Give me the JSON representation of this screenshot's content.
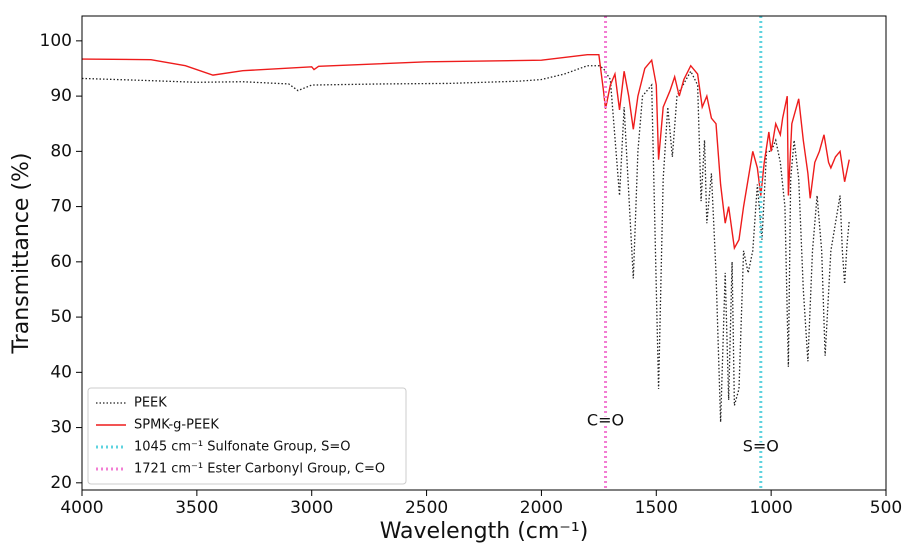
{
  "chart_data": {
    "type": "line",
    "x_label": "Wavelength (cm⁻¹)",
    "y_label": "Transmittance (%)",
    "xlim": [
      4000,
      500
    ],
    "ylim": [
      18.7,
      104.5
    ],
    "xticks": [
      4000,
      3500,
      3000,
      2500,
      2000,
      1500,
      1000,
      500
    ],
    "yticks": [
      20,
      30,
      40,
      50,
      60,
      70,
      80,
      90,
      100
    ],
    "grid": false,
    "legend_position": "lower-left",
    "series": [
      {
        "name": "PEEK",
        "color": "#222222",
        "style": "dotted",
        "x": [
          4000,
          3700,
          3500,
          3300,
          3100,
          3060,
          3000,
          2700,
          2400,
          2100,
          2000,
          1900,
          1800,
          1750,
          1730,
          1700,
          1660,
          1640,
          1600,
          1580,
          1560,
          1520,
          1490,
          1470,
          1450,
          1430,
          1410,
          1350,
          1320,
          1305,
          1290,
          1280,
          1260,
          1240,
          1220,
          1200,
          1185,
          1170,
          1160,
          1140,
          1120,
          1100,
          1080,
          1060,
          1040,
          1020,
          1000,
          980,
          960,
          940,
          925,
          915,
          900,
          880,
          860,
          840,
          820,
          800,
          780,
          765,
          740,
          720,
          700,
          690,
          680,
          670,
          660
        ],
        "values": [
          93.2,
          92.8,
          92.5,
          92.6,
          92.2,
          91,
          92,
          92.2,
          92.3,
          92.7,
          93,
          94,
          95.5,
          95.5,
          95,
          93,
          72,
          88,
          57,
          80,
          90,
          92,
          37,
          75,
          88,
          79,
          90,
          94.5,
          92,
          71,
          82,
          67,
          76,
          58,
          31,
          58,
          35,
          60,
          34,
          37,
          62,
          58,
          62,
          74,
          64,
          80,
          80,
          82,
          78,
          70,
          41,
          75,
          82,
          75,
          55,
          42,
          62,
          72,
          62,
          43,
          62,
          67,
          72,
          62,
          56,
          63,
          67.5
        ]
      },
      {
        "name": "SPMK-g-PEEK",
        "color": "#ee1c1c",
        "style": "solid",
        "x": [
          4000,
          3700,
          3550,
          3430,
          3300,
          3000,
          2990,
          2970,
          2500,
          2000,
          1800,
          1750,
          1730,
          1721,
          1700,
          1680,
          1660,
          1640,
          1620,
          1600,
          1580,
          1550,
          1520,
          1500,
          1490,
          1470,
          1440,
          1420,
          1400,
          1380,
          1350,
          1320,
          1300,
          1280,
          1260,
          1240,
          1220,
          1200,
          1185,
          1160,
          1140,
          1120,
          1100,
          1080,
          1060,
          1045,
          1030,
          1010,
          1000,
          980,
          960,
          950,
          930,
          925,
          910,
          880,
          860,
          840,
          830,
          810,
          790,
          770,
          750,
          740,
          720,
          700,
          680,
          660
        ],
        "values": [
          96.7,
          96.6,
          95.5,
          93.8,
          94.6,
          95.3,
          94.8,
          95.4,
          96.2,
          96.5,
          97.5,
          97.5,
          91,
          87.7,
          92,
          94,
          87.5,
          94.5,
          90,
          84,
          90,
          95,
          96.5,
          92,
          78.5,
          88,
          91,
          93.5,
          90,
          93,
          95.5,
          94,
          88,
          90,
          86,
          85,
          74,
          67,
          70,
          62.5,
          64,
          70,
          75,
          80,
          77,
          72,
          78,
          83.5,
          80,
          85,
          83,
          86,
          90,
          72,
          85,
          89.5,
          82,
          76,
          71.5,
          78,
          80,
          83,
          78,
          77,
          79,
          80,
          74.5,
          78.5
        ]
      }
    ],
    "vlines": [
      {
        "name": "1045 cm⁻¹ Sulfonate Group, S=O",
        "x": 1045,
        "color": "#5fd3df",
        "label": "S=O"
      },
      {
        "name": "1721 cm⁻¹ Ester Carbonyl Group, C=O",
        "x": 1721,
        "color": "#f27ed3",
        "label": "C=O"
      }
    ]
  }
}
